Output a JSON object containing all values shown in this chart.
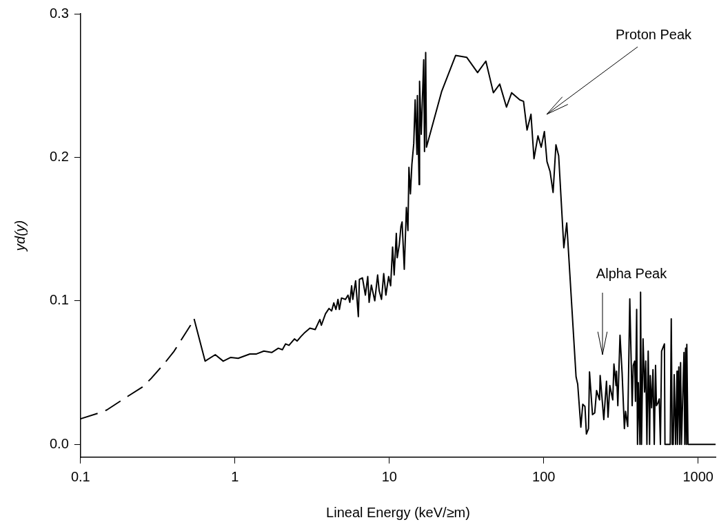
{
  "chart_data": {
    "type": "line",
    "xlabel": "Lineal Energy (keV/≥m)",
    "ylabel": "yd(y)",
    "log": "x",
    "grid": false,
    "legend": false,
    "xlim": [
      0.1,
      1300
    ],
    "xticks": [
      0.1,
      1,
      10,
      100,
      1000
    ],
    "ylim": [
      -0.009,
      0.3
    ],
    "yticks": [
      {
        "value": 0,
        "label": "0.0"
      },
      {
        "value": 0.1,
        "label": "0.1"
      },
      {
        "value": 0.2,
        "label": "0.2"
      },
      {
        "value": 0.3,
        "label": "0.3"
      }
    ],
    "annotations": [
      "Proton Peak",
      "Alpha Peak"
    ],
    "series": [
      {
        "color": "#000000",
        "line_style": "dashed",
        "x": [
          0.1,
          0.133,
          0.148,
          0.197,
          0.252,
          0.287,
          0.353,
          0.404,
          0.516,
          0.544
        ],
        "values": [
          0.0178,
          0.022,
          0.024,
          0.0327,
          0.04,
          0.046,
          0.057,
          0.065,
          0.083,
          0.0875
        ]
      },
      {
        "color": "#000000",
        "line_style": "solid",
        "x": [
          0.544,
          0.641,
          0.746,
          0.84,
          0.94,
          1.05,
          1.25,
          1.38,
          1.54,
          1.73,
          1.91,
          2.03,
          2.13,
          2.24,
          2.43,
          2.53,
          2.67,
          2.84,
          3.06,
          3.31,
          3.55,
          3.63,
          3.86,
          4.07,
          4.23,
          4.37,
          4.51,
          4.65,
          4.75,
          4.9,
          5.2,
          5.4,
          5.55,
          5.7,
          5.8,
          6.05,
          6.3,
          6.4,
          6.7,
          7.0,
          7.25,
          7.4,
          7.65,
          8.05,
          8.4,
          8.6,
          8.9,
          9.2,
          9.5,
          9.9,
          10.2,
          10.5,
          10.75,
          11.1,
          11.25,
          11.6,
          11.9,
          12.1,
          12.5,
          12.9,
          13.2,
          13.4,
          13.7,
          14.0,
          14.4,
          14.7,
          15.1,
          15.2,
          15.6,
          15.7,
          16.1,
          16.7,
          16.9,
          17.2,
          17.4,
          21.8,
          26.9,
          31.7,
          37.3,
          42.2,
          47.2,
          51.9,
          57.4,
          62,
          70,
          74,
          78,
          82.7,
          86.5,
          91.8,
          96.3,
          101,
          105,
          110,
          115,
          120,
          125,
          135,
          141,
          162,
          166,
          174,
          179,
          185,
          189,
          195,
          198,
          207,
          214,
          220,
          230,
          232,
          245,
          255,
          261,
          268,
          280,
          285,
          294,
          296,
          302,
          312,
          322,
          333,
          339,
          350,
          361,
          374,
          380,
          388,
          393,
          400,
          405,
          410,
          420,
          424,
          430,
          440,
          450,
          458,
          466,
          475,
          485,
          490,
          500,
          510,
          520,
          530,
          537,
          550,
          560,
          570,
          580,
          590,
          605,
          610,
          660,
          670,
          680,
          690,
          700,
          715,
          730,
          735,
          750,
          760,
          770,
          780,
          810,
          820,
          830,
          840,
          845,
          860,
          1300
        ],
        "values": [
          0.0875,
          0.058,
          0.0625,
          0.058,
          0.0606,
          0.06,
          0.063,
          0.063,
          0.065,
          0.064,
          0.067,
          0.066,
          0.07,
          0.069,
          0.0735,
          0.072,
          0.075,
          0.078,
          0.081,
          0.08,
          0.087,
          0.083,
          0.091,
          0.0947,
          0.093,
          0.0986,
          0.094,
          0.101,
          0.094,
          0.102,
          0.101,
          0.104,
          0.099,
          0.1105,
          0.101,
          0.114,
          0.089,
          0.115,
          0.116,
          0.104,
          0.117,
          0.099,
          0.111,
          0.1,
          0.118,
          0.107,
          0.101,
          0.119,
          0.104,
          0.117,
          0.1105,
          0.1375,
          0.118,
          0.147,
          0.13,
          0.139,
          0.152,
          0.155,
          0.122,
          0.165,
          0.149,
          0.193,
          0.1745,
          0.195,
          0.2096,
          0.24,
          0.202,
          0.243,
          0.181,
          0.253,
          0.216,
          0.268,
          0.204,
          0.273,
          0.207,
          0.2457,
          0.271,
          0.2697,
          0.259,
          0.267,
          0.245,
          0.251,
          0.235,
          0.245,
          0.24,
          0.239,
          0.219,
          0.23,
          0.199,
          0.215,
          0.207,
          0.218,
          0.197,
          0.19,
          0.1755,
          0.2087,
          0.201,
          0.137,
          0.1543,
          0.047,
          0.042,
          0.012,
          0.028,
          0.0264,
          0.0072,
          0.011,
          0.0505,
          0.0207,
          0.022,
          0.0375,
          0.031,
          0.048,
          0.0173,
          0.044,
          0.019,
          0.041,
          0.031,
          0.056,
          0.041,
          0.051,
          0.027,
          0.076,
          0.0495,
          0.011,
          0.023,
          0.0125,
          0.1014,
          0.027,
          0.055,
          0.058,
          0.03,
          0.094,
          0,
          0.043,
          0,
          0.106,
          0,
          0.0735,
          0.0365,
          0.058,
          0,
          0.065,
          0,
          0.048,
          0.0255,
          0.052,
          0,
          0.055,
          0.027,
          0.029,
          0.0317,
          0,
          0.065,
          0.067,
          0.07,
          0,
          0,
          0.0875,
          0,
          0,
          0.0486,
          0,
          0.051,
          0,
          0.054,
          0,
          0.057,
          0,
          0.064,
          0,
          0.067,
          0,
          0.0697,
          0,
          0
        ]
      }
    ]
  }
}
